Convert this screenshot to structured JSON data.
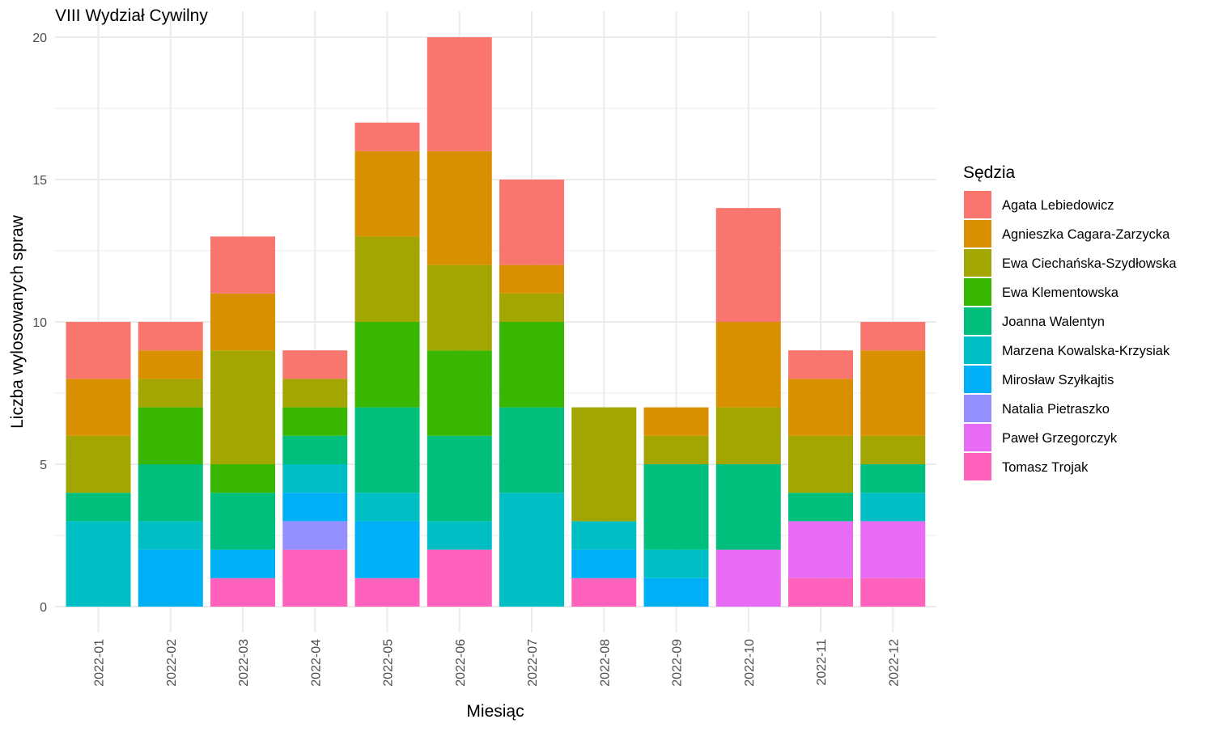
{
  "chart_data": {
    "type": "bar",
    "stacked": true,
    "title": "VIII Wydział Cywilny",
    "xlabel": "Miesiąc",
    "ylabel": "Liczba wylosowanych spraw",
    "ylim": [
      0,
      20
    ],
    "yticks": [
      0,
      5,
      10,
      15,
      20
    ],
    "grid": true,
    "legend_title": "Sędzia",
    "legend_position": "right",
    "categories": [
      "2022-01",
      "2022-02",
      "2022-03",
      "2022-04",
      "2022-05",
      "2022-06",
      "2022-07",
      "2022-08",
      "2022-09",
      "2022-10",
      "2022-11",
      "2022-12"
    ],
    "series": [
      {
        "name": "Agata Lebiedowicz",
        "color": "#F8766D",
        "values": [
          2,
          1,
          2,
          1,
          1,
          4,
          3,
          0,
          0,
          4,
          1,
          1
        ]
      },
      {
        "name": "Agnieszka Cagara-Zarzycka",
        "color": "#D89000",
        "values": [
          2,
          1,
          2,
          0,
          3,
          4,
          1,
          0,
          1,
          3,
          2,
          3
        ]
      },
      {
        "name": "Ewa Ciechańska-Szydłowska",
        "color": "#A3A500",
        "values": [
          2,
          1,
          4,
          1,
          3,
          3,
          1,
          4,
          1,
          2,
          2,
          1
        ]
      },
      {
        "name": "Ewa Klementowska",
        "color": "#39B600",
        "values": [
          0,
          2,
          1,
          1,
          3,
          3,
          3,
          0,
          0,
          0,
          0,
          0
        ]
      },
      {
        "name": "Joanna Walentyn",
        "color": "#00BF7D",
        "values": [
          1,
          2,
          2,
          1,
          3,
          3,
          3,
          0,
          3,
          3,
          1,
          1
        ]
      },
      {
        "name": "Marzena Kowalska-Krzysiak",
        "color": "#00BFC4",
        "values": [
          3,
          1,
          0,
          1,
          1,
          1,
          4,
          1,
          1,
          0,
          0,
          1
        ]
      },
      {
        "name": "Mirosław Szyłkajtis",
        "color": "#00B0F6",
        "values": [
          0,
          2,
          1,
          1,
          2,
          0,
          0,
          1,
          1,
          0,
          0,
          0
        ]
      },
      {
        "name": "Natalia Pietraszko",
        "color": "#9590FF",
        "values": [
          0,
          0,
          0,
          1,
          0,
          0,
          0,
          0,
          0,
          0,
          0,
          0
        ]
      },
      {
        "name": "Paweł Grzegorczyk",
        "color": "#E76BF3",
        "values": [
          0,
          0,
          0,
          0,
          0,
          0,
          0,
          0,
          0,
          2,
          2,
          2
        ]
      },
      {
        "name": "Tomasz Trojak",
        "color": "#FF62BC",
        "values": [
          0,
          0,
          1,
          2,
          1,
          2,
          0,
          1,
          0,
          0,
          1,
          1
        ]
      }
    ]
  }
}
